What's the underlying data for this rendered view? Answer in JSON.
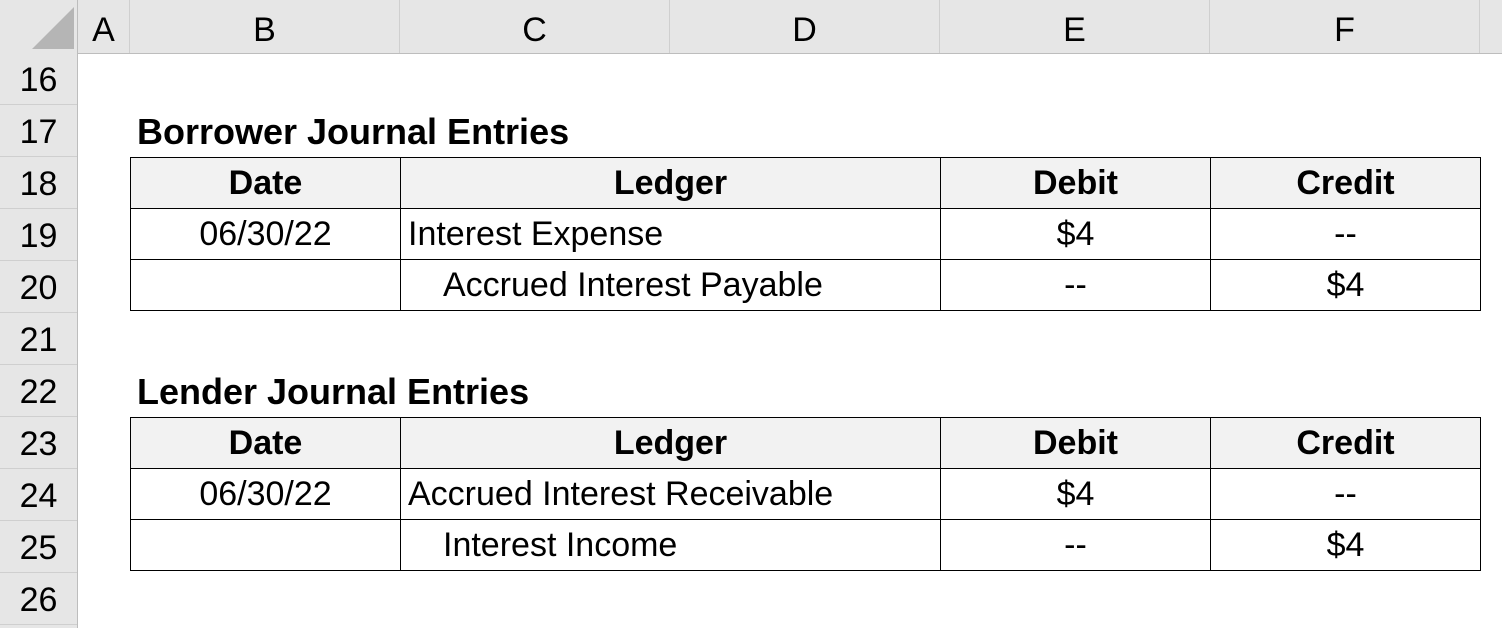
{
  "columns": [
    "A",
    "B",
    "C",
    "D",
    "E",
    "F"
  ],
  "rows": [
    "16",
    "17",
    "18",
    "19",
    "20",
    "21",
    "22",
    "23",
    "24",
    "25",
    "26"
  ],
  "borrower": {
    "title": "Borrower Journal Entries",
    "headers": {
      "date": "Date",
      "ledger": "Ledger",
      "debit": "Debit",
      "credit": "Credit"
    },
    "entries": [
      {
        "date": "06/30/22",
        "ledger": "Interest Expense",
        "debit": "$4",
        "credit": "--"
      },
      {
        "date": "",
        "ledger": "Accrued Interest Payable",
        "debit": "--",
        "credit": "$4"
      }
    ]
  },
  "lender": {
    "title": "Lender Journal Entries",
    "headers": {
      "date": "Date",
      "ledger": "Ledger",
      "debit": "Debit",
      "credit": "Credit"
    },
    "entries": [
      {
        "date": "06/30/22",
        "ledger": "Accrued Interest Receivable",
        "debit": "$4",
        "credit": "--"
      },
      {
        "date": "",
        "ledger": "Interest Income",
        "debit": "--",
        "credit": "$4"
      }
    ]
  }
}
